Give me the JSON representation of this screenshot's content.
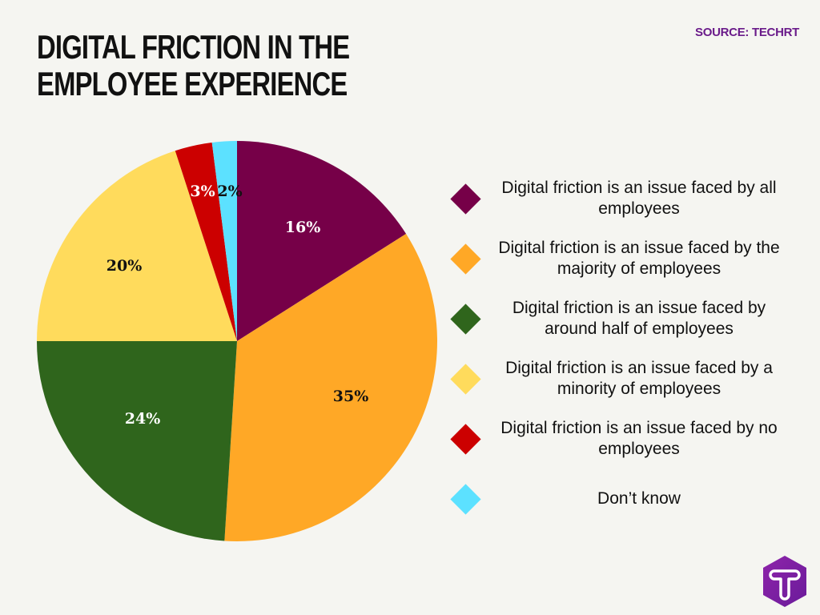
{
  "header": {
    "title": "DIGITAL FRICTION IN THE EMPLOYEE EXPERIENCE",
    "source": "SOURCE: TECHRT"
  },
  "legend": {
    "items": [
      {
        "label": "Digital friction is an issue faced by all employees",
        "color": "#760048"
      },
      {
        "label": "Digital friction is an issue faced by the majority of employees",
        "color": "#ffa826"
      },
      {
        "label": "Digital friction is an issue faced by around half of employees",
        "color": "#2f651c"
      },
      {
        "label": "Digital friction is an issue faced by a minority of employees",
        "color": "#ffdb5c"
      },
      {
        "label": "Digital friction is an issue faced by no employees",
        "color": "#cc0000"
      },
      {
        "label": "Don’t know",
        "color": "#5ce1ff"
      }
    ]
  },
  "logo": {
    "icon": "techrt-t-hexagon-icon",
    "color": "#7b1fa2"
  },
  "chart_data": {
    "type": "pie",
    "title": "DIGITAL FRICTION IN THE EMPLOYEE EXPERIENCE",
    "source": "SOURCE: TECHRT",
    "categories": [
      "Digital friction is an issue faced by all employees",
      "Digital friction is an issue faced by the majority of employees",
      "Digital friction is an issue faced by around half of employees",
      "Digital friction is an issue faced by a minority of employees",
      "Digital friction is an issue faced by no employees",
      "Don’t know"
    ],
    "values": [
      16,
      35,
      24,
      20,
      3,
      2
    ],
    "labels": [
      "16%",
      "35%",
      "24%",
      "20%",
      "3%",
      "2%"
    ],
    "colors": [
      "#760048",
      "#ffa826",
      "#2f651c",
      "#ffdb5c",
      "#cc0000",
      "#5ce1ff"
    ],
    "label_colors": [
      "#ffffff",
      "#111111",
      "#ffffff",
      "#111111",
      "#ffffff",
      "#111111"
    ],
    "start_angle": "12 o'clock, clockwise",
    "legend_position": "right"
  }
}
